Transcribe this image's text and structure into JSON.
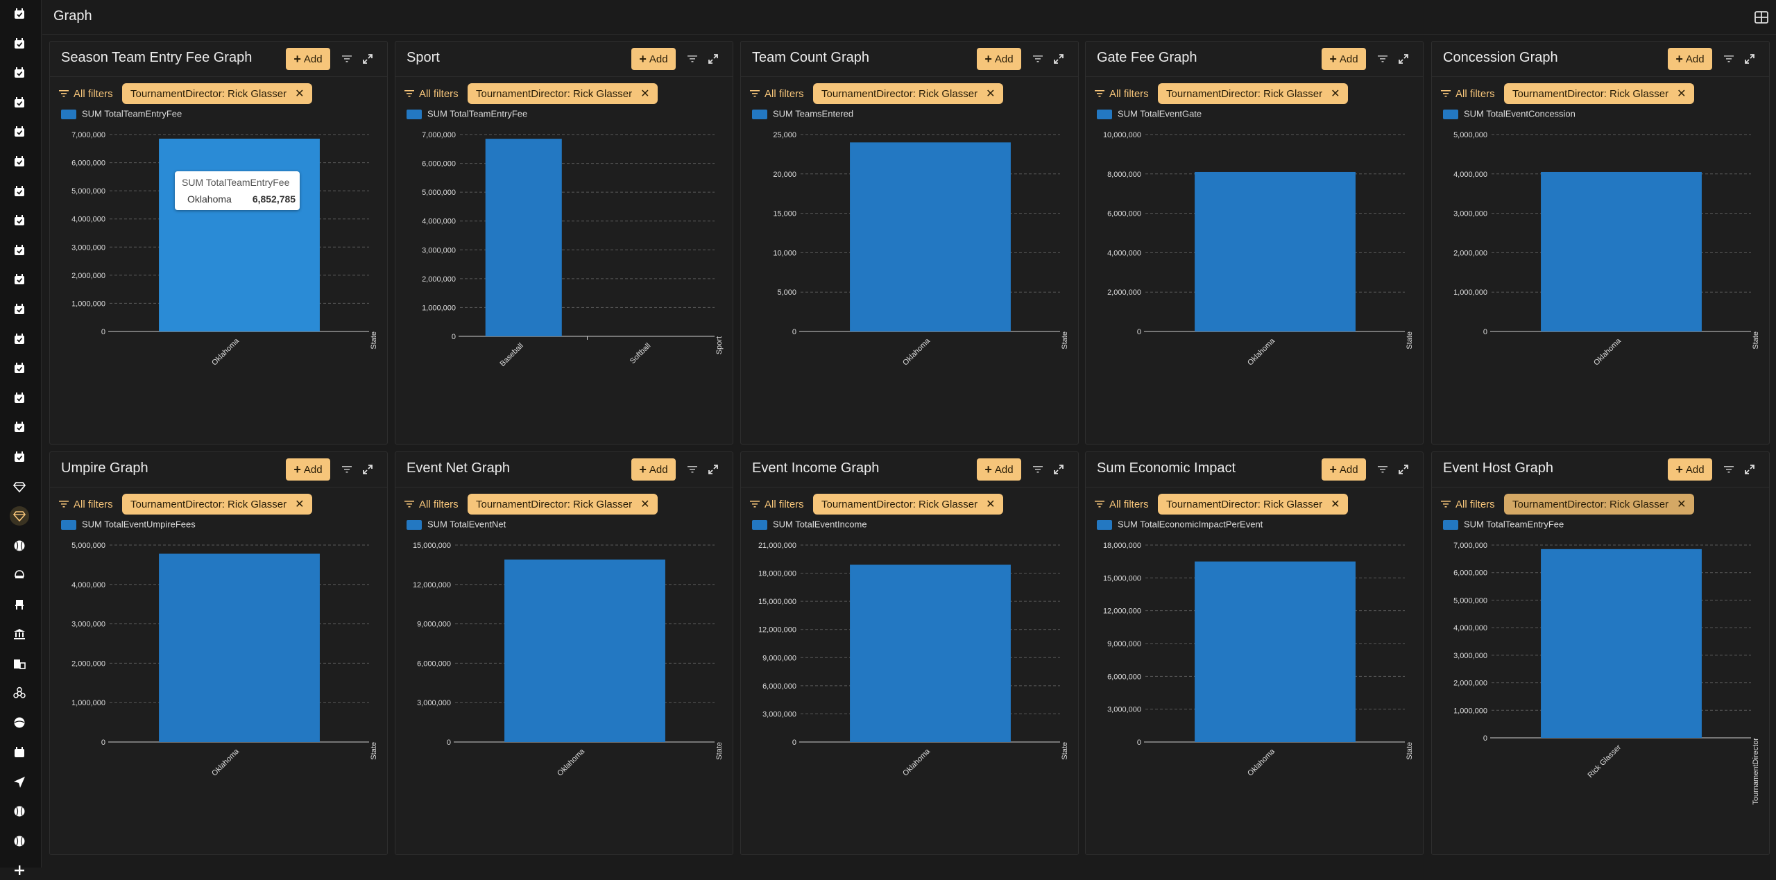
{
  "app": {
    "title": "Graph"
  },
  "sidebar": {
    "items": [
      "calendar-check-icon",
      "calendar-check-icon",
      "calendar-check-icon",
      "calendar-check-icon",
      "calendar-check-icon",
      "calendar-check-icon",
      "calendar-check-icon",
      "calendar-check-icon",
      "calendar-check-icon",
      "calendar-check-icon",
      "calendar-check-icon",
      "calendar-check-icon",
      "calendar-check-icon",
      "calendar-check-icon",
      "calendar-check-icon",
      "calendar-check-icon",
      "diamond-icon",
      "diamond-icon",
      "baseball-icon",
      "helmet-icon",
      "chair-icon",
      "bank-icon",
      "hotel-icon",
      "biohazard-icon",
      "ball-icon",
      "calendar-icon",
      "send-icon",
      "baseball-icon",
      "baseball-icon",
      "plus-icon"
    ],
    "active_index": 17
  },
  "colors": {
    "accent": "#f6c57a",
    "bar": "#2378c2",
    "bar_highlight": "#2a8bd6",
    "background": "#1b1b1b"
  },
  "common": {
    "add_label": "Add",
    "all_filters_label": "All filters",
    "filter_chip": "TournamentDirector: Rick Glasser"
  },
  "tooltip": {
    "title": "SUM TotalTeamEntryFee",
    "label": "Oklahoma",
    "value": "6,852,785"
  },
  "chart_data": [
    {
      "title": "Season Team Entry Fee Graph",
      "type": "bar",
      "series": [
        {
          "name": "SUM TotalTeamEntryFee",
          "values": [
            6852785
          ]
        }
      ],
      "categories": [
        "Oklahoma"
      ],
      "xlabel": "State",
      "ylim": [
        0,
        7000000
      ],
      "yticks": [
        "0",
        "1,000,000",
        "2,000,000",
        "3,000,000",
        "4,000,000",
        "5,000,000",
        "6,000,000",
        "7,000,000"
      ],
      "grid": true,
      "legend": "top-left"
    },
    {
      "title": "Sport",
      "type": "bar",
      "series": [
        {
          "name": "SUM TotalTeamEntryFee",
          "values": [
            6852785,
            0
          ]
        }
      ],
      "categories": [
        "Baseball",
        "Softball"
      ],
      "xlabel": "Sport",
      "ylim": [
        0,
        7000000
      ],
      "yticks": [
        "0",
        "1,000,000",
        "2,000,000",
        "3,000,000",
        "4,000,000",
        "5,000,000",
        "6,000,000",
        "7,000,000"
      ],
      "grid": true,
      "legend": "top-left"
    },
    {
      "title": "Team Count Graph",
      "type": "bar",
      "series": [
        {
          "name": "SUM TeamsEntered",
          "values": [
            24000
          ]
        }
      ],
      "categories": [
        "Oklahoma"
      ],
      "xlabel": "State",
      "ylim": [
        0,
        25000
      ],
      "yticks": [
        "0",
        "5,000",
        "10,000",
        "15,000",
        "20,000",
        "25,000"
      ],
      "grid": true,
      "legend": "top-left"
    },
    {
      "title": "Gate Fee Graph",
      "type": "bar",
      "series": [
        {
          "name": "SUM TotalEventGate",
          "values": [
            8100000
          ]
        }
      ],
      "categories": [
        "Oklahoma"
      ],
      "xlabel": "State",
      "ylim": [
        0,
        10000000
      ],
      "yticks": [
        "0",
        "2,000,000",
        "4,000,000",
        "6,000,000",
        "8,000,000",
        "10,000,000"
      ],
      "grid": true,
      "legend": "top-left"
    },
    {
      "title": "Concession Graph",
      "type": "bar",
      "series": [
        {
          "name": "SUM TotalEventConcession",
          "values": [
            4050000
          ]
        }
      ],
      "categories": [
        "Oklahoma"
      ],
      "xlabel": "State",
      "ylim": [
        0,
        5000000
      ],
      "yticks": [
        "0",
        "1,000,000",
        "2,000,000",
        "3,000,000",
        "4,000,000",
        "5,000,000"
      ],
      "grid": true,
      "legend": "top-left"
    },
    {
      "title": "Umpire Graph",
      "type": "bar",
      "series": [
        {
          "name": "SUM TotalEventUmpireFees",
          "values": [
            4780000
          ]
        }
      ],
      "categories": [
        "Oklahoma"
      ],
      "xlabel": "State",
      "ylim": [
        0,
        5000000
      ],
      "yticks": [
        "0",
        "1,000,000",
        "2,000,000",
        "3,000,000",
        "4,000,000",
        "5,000,000"
      ],
      "grid": true,
      "legend": "top-left"
    },
    {
      "title": "Event Net Graph",
      "type": "bar",
      "series": [
        {
          "name": "SUM TotalEventNet",
          "values": [
            13900000
          ]
        }
      ],
      "categories": [
        "Oklahoma"
      ],
      "xlabel": "State",
      "ylim": [
        0,
        15000000
      ],
      "yticks": [
        "0",
        "3,000,000",
        "6,000,000",
        "9,000,000",
        "12,000,000",
        "15,000,000"
      ],
      "grid": true,
      "legend": "top-left"
    },
    {
      "title": "Event Income Graph",
      "type": "bar",
      "series": [
        {
          "name": "SUM TotalEventIncome",
          "values": [
            18900000
          ]
        }
      ],
      "categories": [
        "Oklahoma"
      ],
      "xlabel": "State",
      "ylim": [
        0,
        21000000
      ],
      "yticks": [
        "0",
        "3,000,000",
        "6,000,000",
        "9,000,000",
        "12,000,000",
        "15,000,000",
        "18,000,000",
        "21,000,000"
      ],
      "grid": true,
      "legend": "top-left"
    },
    {
      "title": "Sum Economic Impact",
      "type": "bar",
      "series": [
        {
          "name": "SUM TotalEconomicImpactPerEvent",
          "values": [
            16500000
          ]
        }
      ],
      "categories": [
        "Oklahoma"
      ],
      "xlabel": "State",
      "ylim": [
        0,
        18000000
      ],
      "yticks": [
        "0",
        "3,000,000",
        "6,000,000",
        "9,000,000",
        "12,000,000",
        "15,000,000",
        "18,000,000"
      ],
      "grid": true,
      "legend": "top-left"
    },
    {
      "title": "Event Host Graph",
      "type": "bar",
      "series": [
        {
          "name": "SUM TotalTeamEntryFee",
          "values": [
            6852785
          ]
        }
      ],
      "categories": [
        "Rick Glasser"
      ],
      "xlabel": "TournamentDirector",
      "ylim": [
        0,
        7000000
      ],
      "yticks": [
        "0",
        "1,000,000",
        "2,000,000",
        "3,000,000",
        "4,000,000",
        "5,000,000",
        "6,000,000",
        "7,000,000"
      ],
      "grid": true,
      "legend": "top-left"
    }
  ]
}
